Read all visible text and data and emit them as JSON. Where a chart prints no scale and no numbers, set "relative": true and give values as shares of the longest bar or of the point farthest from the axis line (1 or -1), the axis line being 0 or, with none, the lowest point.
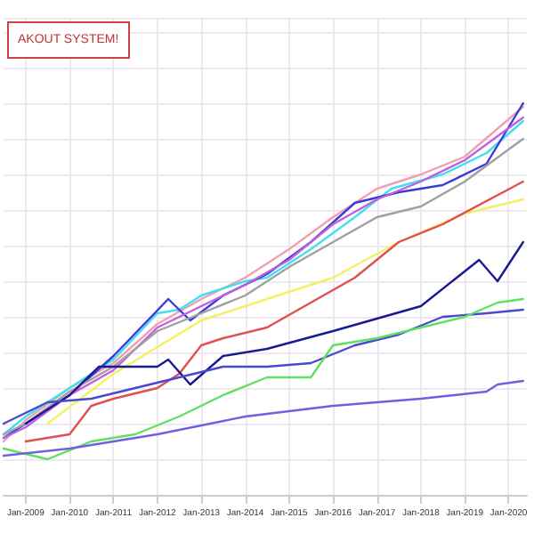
{
  "chart_data": {
    "type": "line",
    "title": "AKOUT SYSTEM!",
    "relative": true,
    "grid": true,
    "marker": "none",
    "line_style": "solid",
    "tick_labels": "x",
    "xlim": [
      "2008-07",
      "2020-06"
    ],
    "xticks": [
      {
        "value": "2009-01",
        "label": "Jan-2009"
      },
      {
        "value": "2010-01",
        "label": "Jan-2010"
      },
      {
        "value": "2011-01",
        "label": "Jan-2011"
      },
      {
        "value": "2012-01",
        "label": "Jan-2012"
      },
      {
        "value": "2013-01",
        "label": "Jan-2013"
      },
      {
        "value": "2014-01",
        "label": "Jan-2014"
      },
      {
        "value": "2015-01",
        "label": "Jan-2015"
      },
      {
        "value": "2016-01",
        "label": "Jan-2016"
      },
      {
        "value": "2017-01",
        "label": "Jan-2017"
      },
      {
        "value": "2018-01",
        "label": "Jan-2018"
      },
      {
        "value": "2019-01",
        "label": "Jan-2019"
      },
      {
        "value": "2020-01",
        "label": "Jan-2020"
      }
    ],
    "series": [
      {
        "color": "#f0a0b0",
        "x": [
          "2008-07",
          "2009-01",
          "2010-01",
          "2011-01",
          "2012-01",
          "2013-01",
          "2014-01",
          "2015-01",
          "2016-01",
          "2017-01",
          "2018-01",
          "2019-01",
          "2020-05"
        ],
        "values": [
          0.05,
          0.11,
          0.2,
          0.27,
          0.38,
          0.45,
          0.51,
          0.59,
          0.68,
          0.76,
          0.8,
          0.85,
          0.99
        ]
      },
      {
        "color": "#40e0f0",
        "x": [
          "2008-07",
          "2009-01",
          "2010-01",
          "2011-01",
          "2012-01",
          "2012-07",
          "2013-01",
          "2014-01",
          "2014-07",
          "2015-07",
          "2016-07",
          "2017-05",
          "2018-07",
          "2019-07",
          "2020-05"
        ],
        "values": [
          0.07,
          0.12,
          0.2,
          0.28,
          0.41,
          0.42,
          0.46,
          0.5,
          0.51,
          0.59,
          0.68,
          0.76,
          0.8,
          0.86,
          0.95
        ]
      },
      {
        "color": "#3a3ad8",
        "x": [
          "2008-07",
          "2009-01",
          "2010-01",
          "2011-01",
          "2012-04",
          "2012-10",
          "2013-07",
          "2014-07",
          "2015-07",
          "2016-07",
          "2017-07",
          "2018-07",
          "2019-07",
          "2020-05"
        ],
        "values": [
          0.06,
          0.1,
          0.18,
          0.29,
          0.45,
          0.39,
          0.46,
          0.52,
          0.61,
          0.72,
          0.75,
          0.77,
          0.83,
          1
        ]
      },
      {
        "color": "#c060e0",
        "x": [
          "2008-07",
          "2009-01",
          "2010-01",
          "2011-01",
          "2012-01",
          "2013-01",
          "2014-01",
          "2015-01",
          "2016-01",
          "2017-01",
          "2018-01",
          "2019-01",
          "2020-05"
        ],
        "values": [
          0.06,
          0.09,
          0.18,
          0.25,
          0.37,
          0.43,
          0.49,
          0.56,
          0.66,
          0.73,
          0.78,
          0.84,
          0.96
        ]
      },
      {
        "color": "#a0a0a0",
        "x": [
          "2008-07",
          "2009-01",
          "2010-01",
          "2011-01",
          "2012-01",
          "2013-01",
          "2014-01",
          "2015-01",
          "2016-01",
          "2017-01",
          "2018-01",
          "2019-01",
          "2020-05"
        ],
        "values": [
          0.07,
          0.1,
          0.19,
          0.26,
          0.36,
          0.41,
          0.46,
          0.54,
          0.61,
          0.68,
          0.71,
          0.78,
          0.9
        ]
      },
      {
        "color": "#f5f060",
        "x": [
          "2009-07",
          "2011-01",
          "2013-01",
          "2014-07",
          "2016-01",
          "2017-07",
          "2019-01",
          "2020-05"
        ],
        "values": [
          0.1,
          0.24,
          0.39,
          0.45,
          0.51,
          0.61,
          0.69,
          0.73
        ]
      },
      {
        "color": "#e05050",
        "x": [
          "2009-01",
          "2010-01",
          "2010-07",
          "2011-01",
          "2012-01",
          "2012-07",
          "2013-01",
          "2013-07",
          "2014-07",
          "2015-07",
          "2016-07",
          "2017-07",
          "2018-07",
          "2020-05"
        ],
        "values": [
          0.05,
          0.07,
          0.15,
          0.17,
          0.2,
          0.24,
          0.32,
          0.34,
          0.37,
          0.44,
          0.51,
          0.61,
          0.66,
          0.78
        ]
      },
      {
        "color": "#1a1a90",
        "x": [
          "2009-01",
          "2010-01",
          "2010-09",
          "2012-01",
          "2012-04",
          "2012-10",
          "2013-07",
          "2014-07",
          "2016-01",
          "2018-01",
          "2019-05",
          "2019-10",
          "2020-05"
        ],
        "values": [
          0.1,
          0.18,
          0.26,
          0.26,
          0.28,
          0.21,
          0.29,
          0.31,
          0.36,
          0.43,
          0.56,
          0.5,
          0.61
        ]
      },
      {
        "color": "#4848d0",
        "x": [
          "2008-07",
          "2009-07",
          "2010-07",
          "2011-07",
          "2012-07",
          "2013-07",
          "2014-07",
          "2015-07",
          "2016-07",
          "2017-07",
          "2018-07",
          "2019-07",
          "2020-05"
        ],
        "values": [
          0.1,
          0.16,
          0.17,
          0.2,
          0.23,
          0.26,
          0.26,
          0.27,
          0.32,
          0.35,
          0.4,
          0.41,
          0.42
        ]
      },
      {
        "color": "#60e060",
        "x": [
          "2008-07",
          "2009-07",
          "2010-07",
          "2011-07",
          "2012-07",
          "2013-07",
          "2014-07",
          "2015-07",
          "2016-01",
          "2017-01",
          "2018-01",
          "2019-01",
          "2019-10",
          "2020-05"
        ],
        "values": [
          0.03,
          0,
          0.05,
          0.07,
          0.12,
          0.18,
          0.23,
          0.23,
          0.32,
          0.34,
          0.37,
          0.4,
          0.44,
          0.45
        ]
      },
      {
        "color": "#7060e0",
        "x": [
          "2008-07",
          "2010-01",
          "2012-01",
          "2014-01",
          "2016-01",
          "2018-01",
          "2019-07",
          "2019-10",
          "2020-05"
        ],
        "values": [
          0.01,
          0.03,
          0.07,
          0.12,
          0.15,
          0.17,
          0.19,
          0.21,
          0.22
        ]
      }
    ]
  }
}
